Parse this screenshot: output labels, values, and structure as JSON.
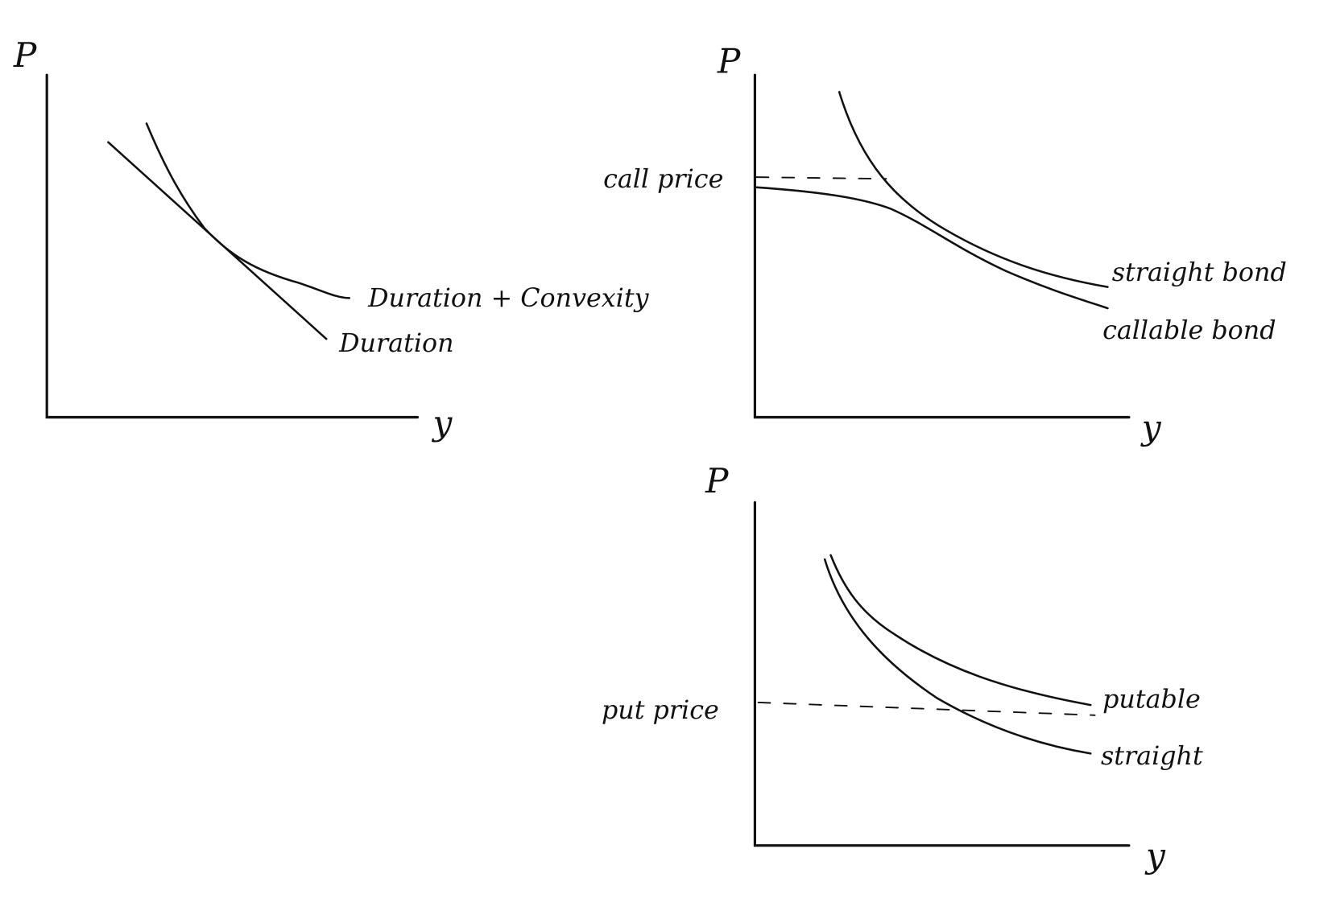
{
  "panels": [
    {
      "y_axis_label": "P",
      "x_axis_label": "y",
      "curve_labels": [
        "Duration + Convexity",
        "Duration"
      ]
    },
    {
      "y_axis_label": "P",
      "x_axis_label": "y",
      "level_label": "call price",
      "curve_labels": [
        "straight bond",
        "callable bond"
      ]
    },
    {
      "y_axis_label": "P",
      "x_axis_label": "y",
      "level_label": "put price",
      "curve_labels": [
        "putable",
        "straight"
      ]
    }
  ]
}
